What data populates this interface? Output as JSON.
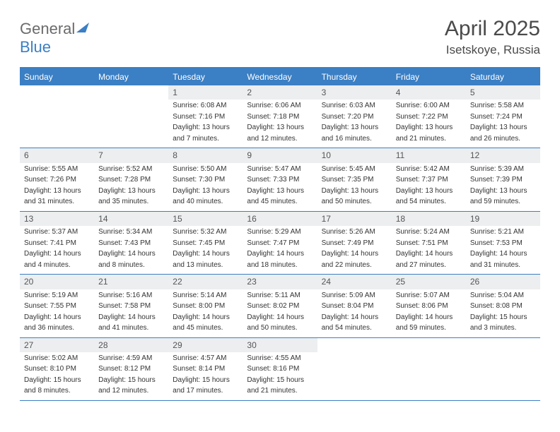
{
  "brand": {
    "part1": "General",
    "part2": "Blue"
  },
  "title": "April 2025",
  "location": "Isetskoye, Russia",
  "colors": {
    "accent": "#3b7fc4",
    "daynum_bg": "#eceef0",
    "text": "#333333",
    "muted": "#6b6b6b",
    "title": "#4a4a4a",
    "white": "#ffffff"
  },
  "day_names": [
    "Sunday",
    "Monday",
    "Tuesday",
    "Wednesday",
    "Thursday",
    "Friday",
    "Saturday"
  ],
  "weeks": [
    [
      {
        "n": "",
        "sunrise": "",
        "sunset": "",
        "daylight1": "",
        "daylight2": ""
      },
      {
        "n": "",
        "sunrise": "",
        "sunset": "",
        "daylight1": "",
        "daylight2": ""
      },
      {
        "n": "1",
        "sunrise": "Sunrise: 6:08 AM",
        "sunset": "Sunset: 7:16 PM",
        "daylight1": "Daylight: 13 hours",
        "daylight2": "and 7 minutes."
      },
      {
        "n": "2",
        "sunrise": "Sunrise: 6:06 AM",
        "sunset": "Sunset: 7:18 PM",
        "daylight1": "Daylight: 13 hours",
        "daylight2": "and 12 minutes."
      },
      {
        "n": "3",
        "sunrise": "Sunrise: 6:03 AM",
        "sunset": "Sunset: 7:20 PM",
        "daylight1": "Daylight: 13 hours",
        "daylight2": "and 16 minutes."
      },
      {
        "n": "4",
        "sunrise": "Sunrise: 6:00 AM",
        "sunset": "Sunset: 7:22 PM",
        "daylight1": "Daylight: 13 hours",
        "daylight2": "and 21 minutes."
      },
      {
        "n": "5",
        "sunrise": "Sunrise: 5:58 AM",
        "sunset": "Sunset: 7:24 PM",
        "daylight1": "Daylight: 13 hours",
        "daylight2": "and 26 minutes."
      }
    ],
    [
      {
        "n": "6",
        "sunrise": "Sunrise: 5:55 AM",
        "sunset": "Sunset: 7:26 PM",
        "daylight1": "Daylight: 13 hours",
        "daylight2": "and 31 minutes."
      },
      {
        "n": "7",
        "sunrise": "Sunrise: 5:52 AM",
        "sunset": "Sunset: 7:28 PM",
        "daylight1": "Daylight: 13 hours",
        "daylight2": "and 35 minutes."
      },
      {
        "n": "8",
        "sunrise": "Sunrise: 5:50 AM",
        "sunset": "Sunset: 7:30 PM",
        "daylight1": "Daylight: 13 hours",
        "daylight2": "and 40 minutes."
      },
      {
        "n": "9",
        "sunrise": "Sunrise: 5:47 AM",
        "sunset": "Sunset: 7:33 PM",
        "daylight1": "Daylight: 13 hours",
        "daylight2": "and 45 minutes."
      },
      {
        "n": "10",
        "sunrise": "Sunrise: 5:45 AM",
        "sunset": "Sunset: 7:35 PM",
        "daylight1": "Daylight: 13 hours",
        "daylight2": "and 50 minutes."
      },
      {
        "n": "11",
        "sunrise": "Sunrise: 5:42 AM",
        "sunset": "Sunset: 7:37 PM",
        "daylight1": "Daylight: 13 hours",
        "daylight2": "and 54 minutes."
      },
      {
        "n": "12",
        "sunrise": "Sunrise: 5:39 AM",
        "sunset": "Sunset: 7:39 PM",
        "daylight1": "Daylight: 13 hours",
        "daylight2": "and 59 minutes."
      }
    ],
    [
      {
        "n": "13",
        "sunrise": "Sunrise: 5:37 AM",
        "sunset": "Sunset: 7:41 PM",
        "daylight1": "Daylight: 14 hours",
        "daylight2": "and 4 minutes."
      },
      {
        "n": "14",
        "sunrise": "Sunrise: 5:34 AM",
        "sunset": "Sunset: 7:43 PM",
        "daylight1": "Daylight: 14 hours",
        "daylight2": "and 8 minutes."
      },
      {
        "n": "15",
        "sunrise": "Sunrise: 5:32 AM",
        "sunset": "Sunset: 7:45 PM",
        "daylight1": "Daylight: 14 hours",
        "daylight2": "and 13 minutes."
      },
      {
        "n": "16",
        "sunrise": "Sunrise: 5:29 AM",
        "sunset": "Sunset: 7:47 PM",
        "daylight1": "Daylight: 14 hours",
        "daylight2": "and 18 minutes."
      },
      {
        "n": "17",
        "sunrise": "Sunrise: 5:26 AM",
        "sunset": "Sunset: 7:49 PM",
        "daylight1": "Daylight: 14 hours",
        "daylight2": "and 22 minutes."
      },
      {
        "n": "18",
        "sunrise": "Sunrise: 5:24 AM",
        "sunset": "Sunset: 7:51 PM",
        "daylight1": "Daylight: 14 hours",
        "daylight2": "and 27 minutes."
      },
      {
        "n": "19",
        "sunrise": "Sunrise: 5:21 AM",
        "sunset": "Sunset: 7:53 PM",
        "daylight1": "Daylight: 14 hours",
        "daylight2": "and 31 minutes."
      }
    ],
    [
      {
        "n": "20",
        "sunrise": "Sunrise: 5:19 AM",
        "sunset": "Sunset: 7:55 PM",
        "daylight1": "Daylight: 14 hours",
        "daylight2": "and 36 minutes."
      },
      {
        "n": "21",
        "sunrise": "Sunrise: 5:16 AM",
        "sunset": "Sunset: 7:58 PM",
        "daylight1": "Daylight: 14 hours",
        "daylight2": "and 41 minutes."
      },
      {
        "n": "22",
        "sunrise": "Sunrise: 5:14 AM",
        "sunset": "Sunset: 8:00 PM",
        "daylight1": "Daylight: 14 hours",
        "daylight2": "and 45 minutes."
      },
      {
        "n": "23",
        "sunrise": "Sunrise: 5:11 AM",
        "sunset": "Sunset: 8:02 PM",
        "daylight1": "Daylight: 14 hours",
        "daylight2": "and 50 minutes."
      },
      {
        "n": "24",
        "sunrise": "Sunrise: 5:09 AM",
        "sunset": "Sunset: 8:04 PM",
        "daylight1": "Daylight: 14 hours",
        "daylight2": "and 54 minutes."
      },
      {
        "n": "25",
        "sunrise": "Sunrise: 5:07 AM",
        "sunset": "Sunset: 8:06 PM",
        "daylight1": "Daylight: 14 hours",
        "daylight2": "and 59 minutes."
      },
      {
        "n": "26",
        "sunrise": "Sunrise: 5:04 AM",
        "sunset": "Sunset: 8:08 PM",
        "daylight1": "Daylight: 15 hours",
        "daylight2": "and 3 minutes."
      }
    ],
    [
      {
        "n": "27",
        "sunrise": "Sunrise: 5:02 AM",
        "sunset": "Sunset: 8:10 PM",
        "daylight1": "Daylight: 15 hours",
        "daylight2": "and 8 minutes."
      },
      {
        "n": "28",
        "sunrise": "Sunrise: 4:59 AM",
        "sunset": "Sunset: 8:12 PM",
        "daylight1": "Daylight: 15 hours",
        "daylight2": "and 12 minutes."
      },
      {
        "n": "29",
        "sunrise": "Sunrise: 4:57 AM",
        "sunset": "Sunset: 8:14 PM",
        "daylight1": "Daylight: 15 hours",
        "daylight2": "and 17 minutes."
      },
      {
        "n": "30",
        "sunrise": "Sunrise: 4:55 AM",
        "sunset": "Sunset: 8:16 PM",
        "daylight1": "Daylight: 15 hours",
        "daylight2": "and 21 minutes."
      },
      {
        "n": "",
        "sunrise": "",
        "sunset": "",
        "daylight1": "",
        "daylight2": ""
      },
      {
        "n": "",
        "sunrise": "",
        "sunset": "",
        "daylight1": "",
        "daylight2": ""
      },
      {
        "n": "",
        "sunrise": "",
        "sunset": "",
        "daylight1": "",
        "daylight2": ""
      }
    ]
  ]
}
